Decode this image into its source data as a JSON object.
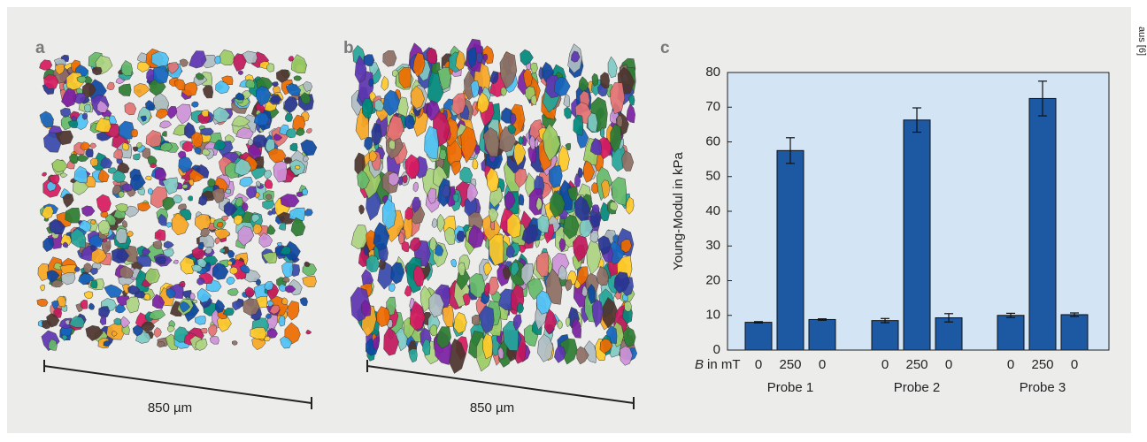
{
  "panels": [
    {
      "label": "a",
      "scale_label": "850 µm"
    },
    {
      "label": "b",
      "scale_label": "850 µm"
    },
    {
      "label": "c"
    }
  ],
  "source": "aus [6]",
  "chart_data": {
    "type": "bar",
    "ylabel": "Young-Modul in kPa",
    "xlabel_symbol": "B",
    "xlabel_unit": "in mT",
    "groups": [
      "Probe 1",
      "Probe 2",
      "Probe 3"
    ],
    "categories": [
      "0",
      "250",
      "0"
    ],
    "values": [
      [
        8,
        57.5,
        8.8
      ],
      [
        8.5,
        66.3,
        9.3
      ],
      [
        10,
        72.5,
        10.2
      ]
    ],
    "errors": [
      [
        0.2,
        3.7,
        0.2
      ],
      [
        0.6,
        3.5,
        1.2
      ],
      [
        0.6,
        5,
        0.5
      ]
    ],
    "color": "#1d58a3",
    "background": "#d3e4f4",
    "ylim": [
      0,
      80
    ],
    "yticks": [
      0,
      10,
      20,
      30,
      40,
      50,
      60,
      70,
      80
    ]
  }
}
